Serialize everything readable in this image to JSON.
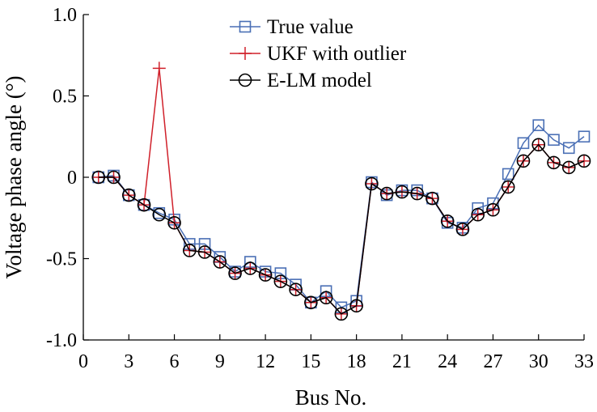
{
  "chart_data": {
    "type": "line",
    "title": "",
    "xlabel": "Bus No.",
    "ylabel": "Voltage phase angle (°)",
    "xlim": [
      0,
      33
    ],
    "ylim": [
      -1.0,
      1.0
    ],
    "xticks": [
      0,
      3,
      6,
      9,
      12,
      15,
      18,
      21,
      24,
      27,
      30,
      33
    ],
    "xtick_labels": [
      "0",
      "3",
      "6",
      "9",
      "12",
      "15",
      "18",
      "21",
      "24",
      "27",
      "30",
      "33"
    ],
    "yticks": [
      1.0,
      0.5,
      0,
      -0.5,
      -1.0
    ],
    "ytick_labels": [
      "1.0",
      "0.5",
      "0",
      "-0.5",
      "-1.0"
    ],
    "grid": false,
    "legend_position": "top-center",
    "x": [
      1,
      2,
      3,
      4,
      5,
      6,
      7,
      8,
      9,
      10,
      11,
      12,
      13,
      14,
      15,
      16,
      17,
      18,
      19,
      20,
      21,
      22,
      23,
      24,
      25,
      26,
      27,
      28,
      29,
      30,
      31,
      32,
      33
    ],
    "series": [
      {
        "name": "True value",
        "color": "#4a6fb5",
        "marker": "square",
        "values": [
          0.0,
          0.01,
          -0.11,
          -0.17,
          -0.22,
          -0.26,
          -0.41,
          -0.41,
          -0.49,
          -0.58,
          -0.52,
          -0.58,
          -0.59,
          -0.66,
          -0.77,
          -0.7,
          -0.8,
          -0.76,
          -0.03,
          -0.11,
          -0.08,
          -0.08,
          -0.13,
          -0.28,
          -0.31,
          -0.19,
          -0.16,
          0.02,
          0.21,
          0.32,
          0.23,
          0.18,
          0.25
        ]
      },
      {
        "name": "UKF with outlier",
        "color": "#d0202a",
        "marker": "plus",
        "values": [
          0.0,
          0.0,
          -0.11,
          -0.17,
          0.67,
          -0.28,
          -0.45,
          -0.46,
          -0.52,
          -0.59,
          -0.56,
          -0.6,
          -0.64,
          -0.69,
          -0.77,
          -0.74,
          -0.84,
          -0.79,
          -0.04,
          -0.1,
          -0.09,
          -0.1,
          -0.13,
          -0.27,
          -0.32,
          -0.23,
          -0.2,
          -0.06,
          0.1,
          0.2,
          0.09,
          0.06,
          0.1
        ]
      },
      {
        "name": "E-LM model",
        "color": "#000000",
        "marker": "circle",
        "values": [
          0.0,
          0.0,
          -0.11,
          -0.17,
          -0.23,
          -0.28,
          -0.45,
          -0.46,
          -0.52,
          -0.59,
          -0.56,
          -0.6,
          -0.64,
          -0.69,
          -0.77,
          -0.74,
          -0.84,
          -0.79,
          -0.04,
          -0.1,
          -0.09,
          -0.1,
          -0.13,
          -0.27,
          -0.32,
          -0.23,
          -0.2,
          -0.06,
          0.1,
          0.2,
          0.09,
          0.06,
          0.1
        ]
      }
    ]
  }
}
